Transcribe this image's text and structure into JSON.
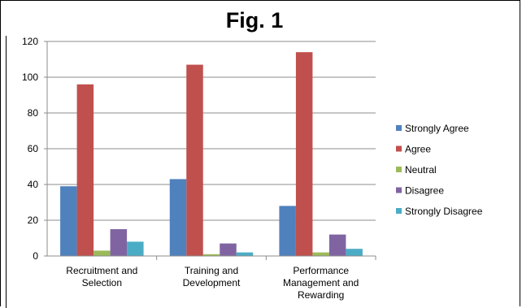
{
  "chart_data": {
    "type": "bar",
    "title": "Fig. 1",
    "categories": [
      "Recruitment and Selection",
      "Training and Development",
      "Performance Management and Rewarding"
    ],
    "category_label_lines": [
      [
        "Recruitment and",
        "Selection"
      ],
      [
        "Training and",
        "Development"
      ],
      [
        "Performance",
        "Management and",
        "Rewarding"
      ]
    ],
    "series": [
      {
        "name": "Strongly Agree",
        "color": "#4F81BD",
        "values": [
          39,
          43,
          28
        ]
      },
      {
        "name": "Agree",
        "color": "#C0504D",
        "values": [
          96,
          107,
          114
        ]
      },
      {
        "name": "Neutral",
        "color": "#9BBB59",
        "values": [
          3,
          1,
          2
        ]
      },
      {
        "name": "Disagree",
        "color": "#8064A2",
        "values": [
          15,
          7,
          12
        ]
      },
      {
        "name": "Strongly Disagree",
        "color": "#4BACC6",
        "values": [
          8,
          2,
          4
        ]
      }
    ],
    "ylim": [
      0,
      120
    ],
    "yticks": [
      0,
      20,
      40,
      60,
      80,
      100,
      120
    ],
    "grid": true,
    "legend_position": "right"
  }
}
